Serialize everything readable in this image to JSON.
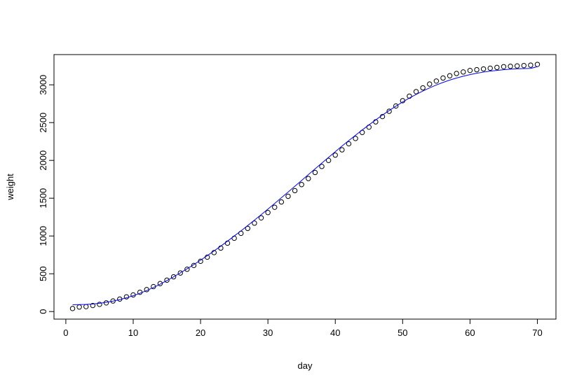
{
  "chart_data": {
    "type": "scatter",
    "x_label": "day",
    "y_label": "weight",
    "x": [
      1,
      2,
      3,
      4,
      5,
      6,
      7,
      8,
      9,
      10,
      11,
      12,
      13,
      14,
      15,
      16,
      17,
      18,
      19,
      20,
      21,
      22,
      23,
      24,
      25,
      26,
      27,
      28,
      29,
      30,
      31,
      32,
      33,
      34,
      35,
      36,
      37,
      38,
      39,
      40,
      41,
      42,
      43,
      44,
      45,
      46,
      47,
      48,
      49,
      50,
      51,
      52,
      53,
      54,
      55,
      56,
      57,
      58,
      59,
      60,
      61,
      62,
      63,
      64,
      65,
      66,
      67,
      68,
      69,
      70
    ],
    "series": [
      {
        "mode": "points",
        "color": "#000000",
        "values": [
          40,
          60,
          65,
          80,
          95,
          115,
          140,
          165,
          195,
          220,
          255,
          290,
          330,
          370,
          415,
          460,
          510,
          560,
          610,
          665,
          720,
          780,
          840,
          905,
          970,
          1035,
          1100,
          1170,
          1240,
          1310,
          1380,
          1450,
          1525,
          1600,
          1680,
          1760,
          1840,
          1920,
          2000,
          2070,
          2140,
          2220,
          2290,
          2370,
          2440,
          2510,
          2580,
          2650,
          2720,
          2790,
          2850,
          2910,
          2960,
          3010,
          3050,
          3090,
          3120,
          3150,
          3170,
          3190,
          3200,
          3210,
          3220,
          3230,
          3240,
          3245,
          3250,
          3255,
          3260,
          3270
        ]
      },
      {
        "mode": "line",
        "color": "#0000ff",
        "values": [
          90,
          92,
          95,
          100,
          110,
          122,
          138,
          158,
          182,
          210,
          242,
          278,
          318,
          362,
          410,
          460,
          512,
          566,
          622,
          680,
          740,
          802,
          866,
          932,
          1000,
          1068,
          1138,
          1210,
          1282,
          1356,
          1430,
          1506,
          1582,
          1658,
          1735,
          1812,
          1888,
          1965,
          2040,
          2115,
          2190,
          2262,
          2333,
          2403,
          2470,
          2536,
          2600,
          2660,
          2718,
          2773,
          2825,
          2873,
          2918,
          2960,
          2998,
          3032,
          3063,
          3090,
          3114,
          3135,
          3153,
          3168,
          3181,
          3191,
          3200,
          3207,
          3212,
          3215,
          3217,
          3240
        ]
      }
    ],
    "xlim": [
      -1.76,
      72.76
    ],
    "ylim": [
      -100,
      3400
    ],
    "xticks": [
      0,
      10,
      20,
      30,
      40,
      50,
      60,
      70
    ],
    "yticks": [
      0,
      500,
      1000,
      1500,
      2000,
      2500,
      3000
    ],
    "grid": false
  }
}
